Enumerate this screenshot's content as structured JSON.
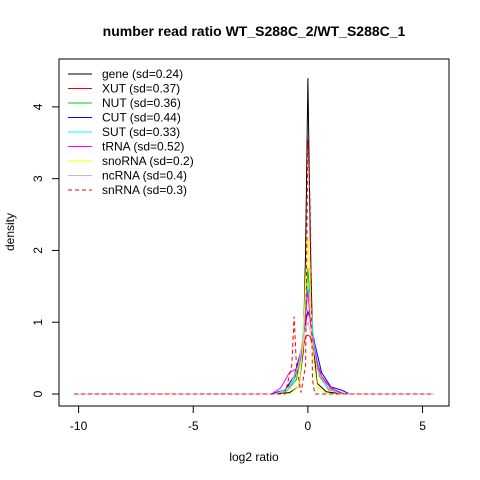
{
  "chart_data": {
    "type": "line",
    "title": "number read ratio WT_S288C_2/WT_S288C_1",
    "xlabel": "log2 ratio",
    "ylabel": "density",
    "xlim": [
      -10.2,
      5.5
    ],
    "ylim": [
      0,
      4.5
    ],
    "xticks": [
      -10,
      -5,
      0,
      5
    ],
    "yticks": [
      0,
      1,
      2,
      3,
      4
    ],
    "grid": false,
    "legend_position": "top-left",
    "series": [
      {
        "name": "gene (sd=0.24)",
        "color": "#000000",
        "dash": "solid",
        "x": [
          -10.2,
          -1.6,
          -0.8,
          -0.4,
          -0.2,
          -0.1,
          0,
          0.1,
          0.2,
          0.4,
          0.8,
          1.5,
          5.5
        ],
        "y": [
          0,
          0,
          0.02,
          0.1,
          0.6,
          2.0,
          4.4,
          2.2,
          0.8,
          0.15,
          0.03,
          0,
          0
        ]
      },
      {
        "name": "XUT (sd=0.37)",
        "color": "#ff0000",
        "dash": "solid",
        "x": [
          -10.2,
          -1.6,
          -1.0,
          -0.6,
          -0.3,
          -0.1,
          0,
          0.1,
          0.3,
          0.6,
          1.0,
          1.6,
          5.5
        ],
        "y": [
          0,
          0,
          0.05,
          0.2,
          0.5,
          0.8,
          0.82,
          0.8,
          0.55,
          0.25,
          0.08,
          0,
          0
        ]
      },
      {
        "name": "NUT (sd=0.36)",
        "color": "#00cc00",
        "dash": "solid",
        "x": [
          -10.2,
          -1.5,
          -0.9,
          -0.5,
          -0.25,
          -0.1,
          0,
          0.1,
          0.25,
          0.5,
          0.9,
          1.6,
          5.5
        ],
        "y": [
          0,
          0,
          0.05,
          0.2,
          0.6,
          1.2,
          1.75,
          1.3,
          0.7,
          0.25,
          0.06,
          0,
          0
        ]
      },
      {
        "name": "CUT (sd=0.44)",
        "color": "#0000ff",
        "dash": "solid",
        "x": [
          -10.2,
          -1.6,
          -1.0,
          -0.6,
          -0.3,
          -0.1,
          0,
          0.1,
          0.3,
          0.6,
          1.0,
          1.5,
          1.8,
          5.5
        ],
        "y": [
          0,
          0,
          0.06,
          0.25,
          0.6,
          1.0,
          1.15,
          1.05,
          0.7,
          0.3,
          0.1,
          0.05,
          0,
          0
        ]
      },
      {
        "name": "SUT (sd=0.33)",
        "color": "#00ffff",
        "dash": "solid",
        "x": [
          -10.2,
          -1.5,
          -0.9,
          -0.5,
          -0.25,
          -0.1,
          0,
          0.1,
          0.25,
          0.5,
          0.9,
          1.4,
          5.5
        ],
        "y": [
          0,
          0,
          0.05,
          0.25,
          0.7,
          1.3,
          1.5,
          1.35,
          0.75,
          0.3,
          0.08,
          0,
          0
        ]
      },
      {
        "name": "tRNA (sd=0.52)",
        "color": "#ff00ff",
        "dash": "solid",
        "x": [
          -10.2,
          -1.6,
          -1.2,
          -0.8,
          -0.5,
          -0.3,
          -0.1,
          0,
          0.1,
          0.3,
          0.5,
          0.8,
          1.2,
          1.6,
          5.5
        ],
        "y": [
          0,
          0,
          0.08,
          0.3,
          0.35,
          0.5,
          1.1,
          1.45,
          1.0,
          0.6,
          0.3,
          0.15,
          0.05,
          0,
          0
        ]
      },
      {
        "name": "snoRNA (sd=0.2)",
        "color": "#ffff00",
        "dash": "solid",
        "x": [
          -10.2,
          -0.8,
          -0.4,
          -0.2,
          -0.1,
          0,
          0.1,
          0.2,
          0.4,
          0.8,
          5.5
        ],
        "y": [
          0,
          0,
          0.1,
          0.7,
          1.6,
          2.2,
          1.5,
          0.6,
          0.1,
          0,
          0
        ]
      },
      {
        "name": "ncRNA (sd=0.4)",
        "color": "#bebebe",
        "dash": "solid",
        "x": [
          -10.2,
          -1.4,
          -0.8,
          -0.4,
          -0.2,
          0,
          0.2,
          0.4,
          0.8,
          1.4,
          5.5
        ],
        "y": [
          0,
          0,
          0.1,
          0.4,
          0.8,
          1.0,
          0.75,
          0.35,
          0.1,
          0,
          0
        ]
      },
      {
        "name": "snRNA (sd=0.3)",
        "color": "#ff0000",
        "dash": "dashed",
        "x": [
          -10.2,
          -1.0,
          -0.7,
          -0.6,
          -0.5,
          -0.3,
          -0.1,
          0,
          0.1,
          0.2,
          0.3,
          0.5,
          5.5
        ],
        "y": [
          0,
          0,
          0.4,
          1.08,
          0.4,
          0.02,
          0.4,
          3.55,
          2.6,
          0.2,
          0,
          0,
          0
        ]
      }
    ]
  }
}
